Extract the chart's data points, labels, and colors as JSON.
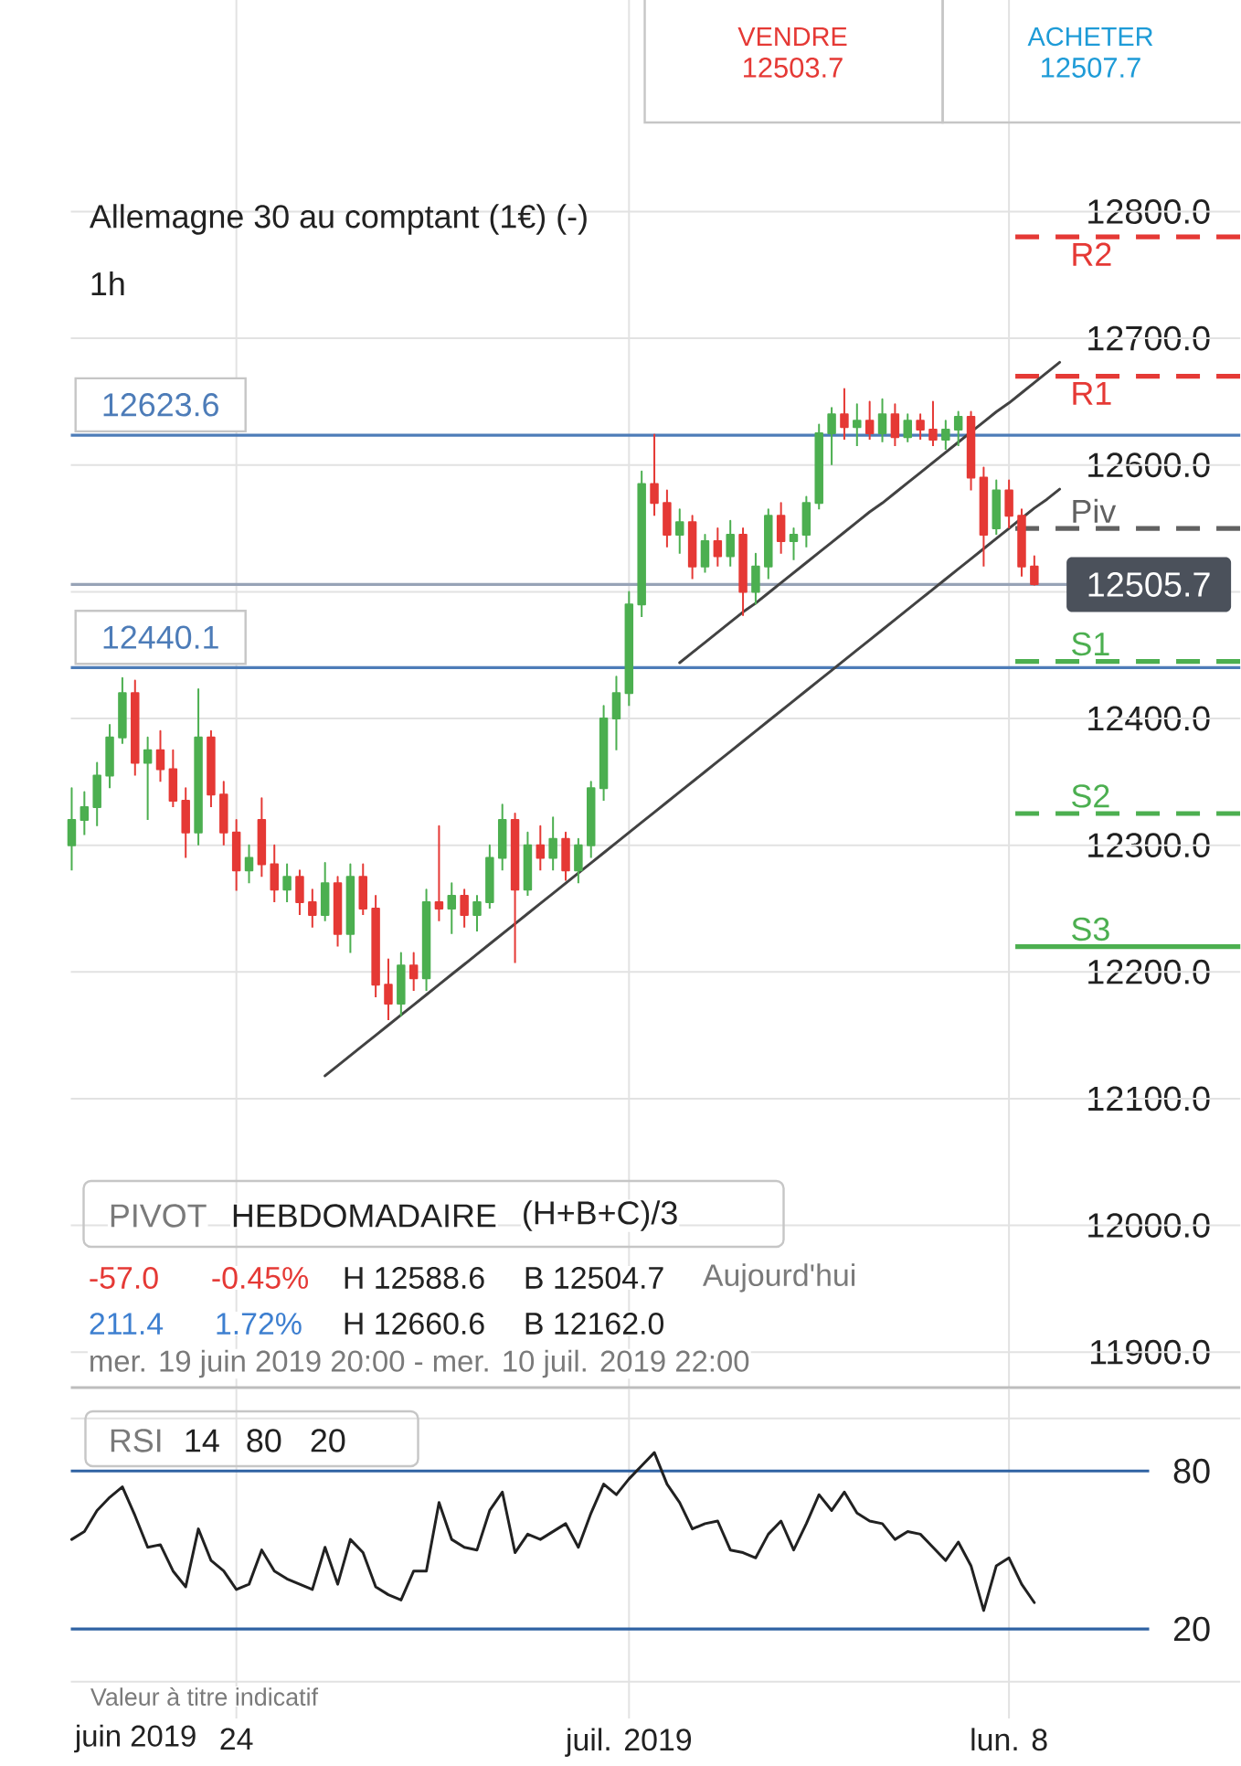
{
  "chart_data": [
    {
      "type": "candlestick",
      "title": "Allemagne 30 au comptant (1€) (-)",
      "subtitle": "1h",
      "categories": [
        null,
        null,
        null,
        null,
        null,
        null,
        null,
        null,
        null,
        null,
        null,
        null,
        null,
        null,
        null,
        null,
        null,
        null,
        null,
        null,
        null,
        null,
        null,
        null,
        null,
        null,
        null,
        null,
        null,
        null,
        null,
        null,
        null,
        null,
        null,
        null,
        null,
        null,
        null,
        null,
        null,
        null,
        null,
        null,
        null,
        null,
        null,
        null,
        null,
        null,
        null,
        null,
        null,
        null,
        null,
        null,
        null,
        null,
        null,
        null,
        null,
        null,
        null,
        null,
        null,
        null,
        null,
        null,
        null,
        null,
        null,
        null,
        null,
        null,
        null,
        null,
        null,
        null,
        null
      ],
      "ohlc": [
        [
          12300,
          12345,
          12280,
          12320
        ],
        [
          12320,
          12342,
          12308,
          12330
        ],
        [
          12330,
          12365,
          12315,
          12355
        ],
        [
          12355,
          12395,
          12345,
          12385
        ],
        [
          12385,
          12432,
          12380,
          12420
        ],
        [
          12420,
          12430,
          12355,
          12365
        ],
        [
          12365,
          12385,
          12320,
          12375
        ],
        [
          12375,
          12390,
          12350,
          12360
        ],
        [
          12360,
          12375,
          12330,
          12335
        ],
        [
          12335,
          12345,
          12290,
          12310
        ],
        [
          12310,
          12423,
          12300,
          12385
        ],
        [
          12385,
          12390,
          12330,
          12340
        ],
        [
          12340,
          12350,
          12300,
          12310
        ],
        [
          12310,
          12320,
          12264,
          12280
        ],
        [
          12280,
          12300,
          12270,
          12290
        ],
        [
          12320,
          12337,
          12275,
          12285
        ],
        [
          12285,
          12300,
          12255,
          12265
        ],
        [
          12265,
          12285,
          12255,
          12275
        ],
        [
          12275,
          12280,
          12245,
          12255
        ],
        [
          12255,
          12265,
          12235,
          12245
        ],
        [
          12245,
          12286,
          12240,
          12270
        ],
        [
          12270,
          12275,
          12220,
          12230
        ],
        [
          12230,
          12285,
          12215,
          12275
        ],
        [
          12275,
          12285,
          12245,
          12250
        ],
        [
          12250,
          12260,
          12180,
          12190
        ],
        [
          12190,
          12210,
          12162,
          12175
        ],
        [
          12175,
          12215,
          12165,
          12205
        ],
        [
          12205,
          12215,
          12185,
          12195
        ],
        [
          12195,
          12265,
          12185,
          12255
        ],
        [
          12255,
          12315,
          12240,
          12250
        ],
        [
          12250,
          12270,
          12230,
          12260
        ],
        [
          12260,
          12265,
          12235,
          12245
        ],
        [
          12245,
          12260,
          12232,
          12255
        ],
        [
          12255,
          12300,
          12250,
          12290
        ],
        [
          12290,
          12332,
          12280,
          12320
        ],
        [
          12320,
          12325,
          12207,
          12265
        ],
        [
          12265,
          12310,
          12260,
          12300
        ],
        [
          12300,
          12315,
          12280,
          12290
        ],
        [
          12290,
          12322,
          12280,
          12305
        ],
        [
          12305,
          12310,
          12272,
          12280
        ],
        [
          12280,
          12305,
          12270,
          12300
        ],
        [
          12300,
          12350,
          12290,
          12345
        ],
        [
          12345,
          12410,
          12335,
          12400
        ],
        [
          12400,
          12433,
          12375,
          12420
        ],
        [
          12420,
          12500,
          12410,
          12490
        ],
        [
          12490,
          12595,
          12480,
          12585
        ],
        [
          12585,
          12624,
          12560,
          12570
        ],
        [
          12570,
          12580,
          12535,
          12545
        ],
        [
          12545,
          12565,
          12530,
          12555
        ],
        [
          12555,
          12560,
          12510,
          12520
        ],
        [
          12520,
          12545,
          12515,
          12540
        ],
        [
          12540,
          12550,
          12520,
          12528
        ],
        [
          12528,
          12556,
          12520,
          12545
        ],
        [
          12545,
          12550,
          12481,
          12500
        ],
        [
          12500,
          12530,
          12490,
          12520
        ],
        [
          12520,
          12565,
          12510,
          12560
        ],
        [
          12560,
          12570,
          12530,
          12540
        ],
        [
          12540,
          12550,
          12525,
          12545
        ],
        [
          12545,
          12575,
          12535,
          12570
        ],
        [
          12570,
          12632,
          12565,
          12625
        ],
        [
          12625,
          12645,
          12600,
          12640
        ],
        [
          12640,
          12660,
          12620,
          12630
        ],
        [
          12630,
          12648,
          12615,
          12635
        ],
        [
          12635,
          12650,
          12620,
          12625
        ],
        [
          12625,
          12652,
          12618,
          12640
        ],
        [
          12640,
          12648,
          12615,
          12622
        ],
        [
          12622,
          12640,
          12618,
          12635
        ],
        [
          12635,
          12640,
          12620,
          12628
        ],
        [
          12628,
          12650,
          12615,
          12620
        ],
        [
          12620,
          12635,
          12612,
          12628
        ],
        [
          12628,
          12642,
          12615,
          12638
        ],
        [
          12638,
          12642,
          12580,
          12590
        ],
        [
          12590,
          12598,
          12520,
          12545
        ],
        [
          12550,
          12588,
          12545,
          12580
        ],
        [
          12580,
          12588,
          12550,
          12560
        ],
        [
          12560,
          12565,
          12512,
          12520
        ],
        [
          12520,
          12528,
          12505,
          12506
        ],
        null,
        null
      ],
      "colors": [
        "#4caf50",
        "#4caf50",
        "#4caf50",
        "#4caf50",
        "#4caf50",
        "#e53935",
        "#4caf50",
        "#e53935",
        "#e53935",
        "#e53935",
        "#4caf50",
        "#e53935",
        "#e53935",
        "#e53935",
        "#4caf50",
        "#e53935",
        "#e53935",
        "#4caf50",
        "#e53935",
        "#e53935",
        "#4caf50",
        "#e53935",
        "#4caf50",
        "#e53935",
        "#e53935",
        "#e53935",
        "#4caf50",
        "#e53935",
        "#4caf50",
        "#e53935",
        "#4caf50",
        "#e53935",
        "#4caf50",
        "#4caf50",
        "#4caf50",
        "#e53935",
        "#4caf50",
        "#e53935",
        "#4caf50",
        "#e53935",
        "#4caf50",
        "#4caf50",
        "#4caf50",
        "#4caf50",
        "#4caf50",
        "#4caf50",
        "#e53935",
        "#e53935",
        "#4caf50",
        "#e53935",
        "#4caf50",
        "#e53935",
        "#4caf50",
        "#e53935",
        "#4caf50",
        "#4caf50",
        "#e53935",
        "#4caf50",
        "#4caf50",
        "#4caf50",
        "#4caf50",
        "#e53935",
        "#4caf50",
        "#e53935",
        "#4caf50",
        "#e53935",
        "#4caf50",
        "#e53935",
        "#e53935",
        "#4caf50",
        "#4caf50",
        "#e53935",
        "#e53935",
        "#4caf50",
        "#e53935",
        "#e53935",
        "#e53935",
        null,
        null
      ],
      "series": [
        {
          "type": "line",
          "color": "#424242",
          "values": [
            null,
            null,
            null,
            null,
            null,
            null,
            null,
            null,
            null,
            null,
            null,
            null,
            null,
            null,
            null,
            null,
            null,
            null,
            null,
            null,
            12118,
            12126,
            12134,
            12142,
            12150,
            12158,
            12166,
            12174,
            12182,
            12190,
            12198,
            12206,
            12214,
            12222,
            12230,
            12238,
            12246,
            12254,
            12262,
            12270,
            12278,
            12286,
            12294,
            12302,
            12310,
            12318,
            12326,
            12334,
            12342,
            12350,
            12358,
            12366,
            12374,
            12382,
            12390,
            12398,
            12406,
            12414,
            12422,
            12430,
            12438,
            12446,
            12454,
            12462,
            12470,
            12478,
            12486,
            12494,
            12502,
            12510,
            12518,
            12526,
            12534,
            12542,
            12550,
            12558,
            12566,
            12573,
            12581
          ]
        },
        {
          "type": "line",
          "color": "#424242",
          "values": [
            null,
            null,
            null,
            null,
            null,
            null,
            null,
            null,
            null,
            null,
            null,
            null,
            null,
            null,
            null,
            null,
            null,
            null,
            null,
            null,
            null,
            null,
            null,
            null,
            null,
            null,
            null,
            null,
            null,
            null,
            null,
            null,
            null,
            null,
            null,
            null,
            null,
            null,
            null,
            null,
            null,
            null,
            null,
            null,
            null,
            null,
            null,
            null,
            12444,
            12452,
            12460,
            12468,
            12476,
            12484,
            12491,
            12499,
            12507,
            12515,
            12523,
            12531,
            12539,
            12547,
            12555,
            12563,
            12570,
            12578,
            12586,
            12594,
            12602,
            12610,
            12618,
            12626,
            12634,
            12642,
            12649,
            12657,
            12665,
            12673,
            12681
          ]
        }
      ],
      "ylim": [
        11872,
        12967
      ],
      "yticks": [
        {
          "value": 11900,
          "label": "11900.0"
        },
        {
          "value": 12000,
          "label": "12000.0"
        },
        {
          "value": 12100,
          "label": "12100.0"
        },
        {
          "value": 12200,
          "label": "12200.0"
        },
        {
          "value": 12300,
          "label": "12300.0"
        },
        {
          "value": 12400,
          "label": "12400.0"
        },
        {
          "value": 12500,
          "label": null
        },
        {
          "value": 12600,
          "label": "12600.0"
        },
        {
          "value": 12700,
          "label": "12700.0"
        },
        {
          "value": 12800,
          "label": "12800.0"
        }
      ],
      "tick_labels": "y",
      "grid": true,
      "ref_lines": [
        {
          "axis": "y",
          "value": 12623.6,
          "label": "12623.6",
          "color": "#4d7cb8"
        },
        {
          "axis": "y",
          "value": 12440.1,
          "label": "12440.1",
          "color": "#4d7cb8"
        },
        {
          "axis": "y",
          "value": 12505.7,
          "label": "12505.7",
          "color": "#97a3b6"
        },
        {
          "axis": "y",
          "value": 12780,
          "label": "R2",
          "color": "#e53935",
          "line_style": "dashed"
        },
        {
          "axis": "y",
          "value": 12670,
          "label": "R1",
          "color": "#e53935",
          "line_style": "dashed"
        },
        {
          "axis": "y",
          "value": 12550,
          "label": "Piv",
          "color": "#616161",
          "line_style": "dashed"
        },
        {
          "axis": "y",
          "value": 12445,
          "label": "S1",
          "color": "#4caf50",
          "line_style": "dashed"
        },
        {
          "axis": "y",
          "value": 12325,
          "label": "S2",
          "color": "#4caf50",
          "line_style": "dashed"
        },
        {
          "axis": "y",
          "value": 12220,
          "label": "S3",
          "color": "#4caf50"
        }
      ],
      "annotations": [
        "VENDRE",
        "12503.7",
        "ACHETER",
        "12507.7",
        "PIVOT",
        "HEBDOMADAIRE",
        "(H+B+C)/3",
        "-57.0",
        "-0.45%",
        "H 12588.6",
        "B 12504.7",
        "Aujourd'hui",
        "211.4",
        "1.72%",
        "H 12660.6",
        "B 12162.0",
        "mer. 19 juin 2019 20:00 - mer. 10 juil. 2019 22:00"
      ]
    },
    {
      "type": "line",
      "xlabel": "juin 2019",
      "categories": [
        null,
        null,
        null,
        null,
        null,
        null,
        null,
        null,
        null,
        null,
        null,
        null,
        null,
        "24",
        null,
        null,
        null,
        null,
        null,
        null,
        null,
        null,
        null,
        null,
        null,
        null,
        null,
        null,
        null,
        null,
        null,
        null,
        null,
        null,
        null,
        null,
        null,
        null,
        null,
        null,
        null,
        null,
        null,
        null,
        "juil. 2019",
        null,
        null,
        null,
        null,
        null,
        null,
        null,
        null,
        null,
        null,
        null,
        null,
        null,
        null,
        null,
        null,
        null,
        null,
        null,
        null,
        null,
        null,
        null,
        null,
        null,
        null,
        null,
        null,
        null,
        "lun. 8",
        null,
        null,
        null,
        null
      ],
      "series": [
        {
          "values": [
            54,
            57,
            65,
            70,
            74,
            63,
            51,
            52,
            42,
            36,
            58,
            46,
            42,
            35,
            37,
            50,
            42,
            39,
            37,
            35,
            51,
            37,
            54,
            49,
            36,
            33,
            31,
            42,
            42,
            68,
            54,
            51,
            50,
            65,
            72,
            49,
            56,
            54,
            57,
            60,
            51,
            64,
            75,
            71,
            77,
            82,
            87,
            75,
            68,
            58,
            60,
            61,
            50,
            49,
            47,
            56,
            61,
            50,
            60,
            71,
            65,
            72,
            64,
            61,
            60,
            54,
            57,
            56,
            51,
            46,
            53,
            44,
            27,
            44,
            47,
            37,
            30,
            null,
            null
          ],
          "color": "#212121"
        }
      ],
      "ylim": [
        -14,
        111
      ],
      "yticks": [
        {
          "value": 0,
          "label": null
        },
        {
          "value": 100,
          "label": null
        }
      ],
      "grid": true,
      "ref_lines": [
        {
          "axis": "y",
          "value": 80,
          "label": "80",
          "color": "#2f62a3"
        },
        {
          "axis": "y",
          "value": 20,
          "label": "20",
          "color": "#2f62a3"
        }
      ],
      "annotations": [
        "RSI",
        "14",
        "80",
        "20",
        "Valeur à titre indicatif"
      ]
    }
  ]
}
